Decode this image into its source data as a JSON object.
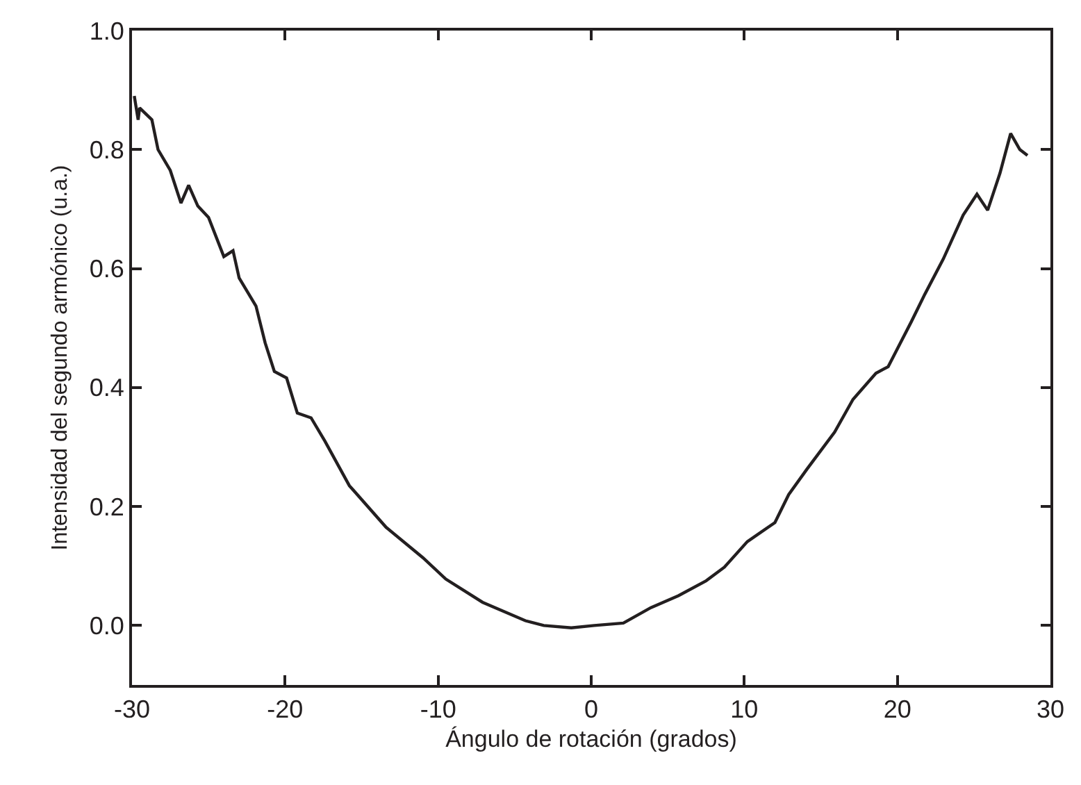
{
  "chart_data": {
    "type": "line",
    "xlabel": "Ángulo de rotación (grados)",
    "ylabel": "Intensidad del segundo armónico (u.a.)",
    "x": [
      -29.85,
      -29.6,
      -29.5,
      -28.7,
      -28.3,
      -27.5,
      -26.8,
      -26.3,
      -25.7,
      -25.0,
      -24.0,
      -23.4,
      -23.0,
      -21.9,
      -21.3,
      -20.7,
      -19.9,
      -19.2,
      -18.3,
      -17.4,
      -15.8,
      -13.4,
      -11.0,
      -9.5,
      -7.1,
      -4.3,
      -3.1,
      -1.3,
      0.2,
      2.1,
      3.9,
      5.7,
      7.5,
      8.7,
      10.2,
      12.0,
      12.9,
      14.1,
      15.9,
      17.1,
      18.6,
      19.4,
      20.9,
      21.8,
      23.0,
      24.3,
      25.2,
      25.9,
      26.7,
      27.4,
      28.0,
      28.5
    ],
    "series": [
      {
        "color": "#231f20",
        "values": [
          0.89,
          0.85,
          0.87,
          0.85,
          0.8,
          0.765,
          0.71,
          0.74,
          0.705,
          0.686,
          0.62,
          0.63,
          0.584,
          0.537,
          0.475,
          0.427,
          0.416,
          0.357,
          0.349,
          0.31,
          0.235,
          0.165,
          0.114,
          0.078,
          0.039,
          0.008,
          0.0,
          -0.004,
          0.0,
          0.004,
          0.03,
          0.05,
          0.075,
          0.098,
          0.141,
          0.173,
          0.22,
          0.263,
          0.325,
          0.38,
          0.424,
          0.435,
          0.51,
          0.557,
          0.616,
          0.69,
          0.725,
          0.698,
          0.76,
          0.827,
          0.8,
          0.79
        ]
      }
    ],
    "xlim": [
      -30,
      30
    ],
    "xticks": [
      -30,
      -20,
      -10,
      0,
      10,
      20,
      30
    ],
    "ylim": [
      -0.1,
      1.0
    ],
    "yticks": [
      {
        "value": 0,
        "label": "0.0"
      },
      {
        "value": 0.2,
        "label": "0.2"
      },
      {
        "value": 0.4,
        "label": "0.4"
      },
      {
        "value": 0.6,
        "label": "0.6"
      },
      {
        "value": 0.8,
        "label": "0.8"
      },
      {
        "value": 1.0,
        "label": "1.0"
      }
    ],
    "marker": "none",
    "line_style": "solid"
  }
}
